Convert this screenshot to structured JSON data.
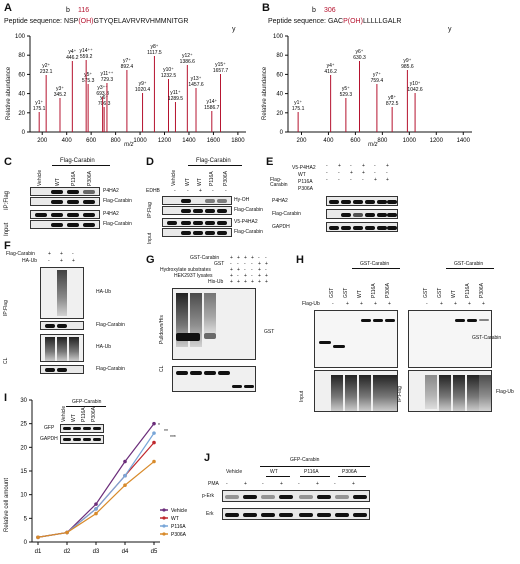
{
  "panels": {
    "A": "A",
    "B": "B",
    "C": "C",
    "D": "D",
    "E": "E",
    "F": "F",
    "G": "G",
    "H": "H",
    "I": "I",
    "J": "J"
  },
  "A": {
    "b_label": "b",
    "site": "116",
    "peptide_prefix": "Peptide sequence: ",
    "peptide_pre": "NSP",
    "peptide_mod": "(OH)",
    "peptide_post": "GTYQELAVRVRVHMMNITGR",
    "y_label": "y",
    "ylabel": "Relative abundance",
    "xlabel": "m/z",
    "yticks": [
      "100",
      "80",
      "60",
      "40",
      "20",
      "0"
    ],
    "xticks": [
      "200",
      "400",
      "600",
      "800",
      "1000",
      "1200",
      "1400",
      "1600",
      "1800"
    ],
    "peaks": [
      "y1⁺\n175.1",
      "y2⁺\n232.1",
      "y3⁺\n345.2",
      "y4⁺\n446.2",
      "y5⁺\n575.3",
      "y6⁺\n706.3",
      "y7⁺\n892.4",
      "y9⁺\n1020.4",
      "y8⁺\n1117.5",
      "y10⁺\n1232.5",
      "y11⁺\n1289.5",
      "y12⁺\n1386.6",
      "y13⁺\n1457.6",
      "y14⁺\n1586.7",
      "y15⁺\n1657.7",
      "y3⁺⁺\n693.8",
      "y14⁺⁺\n559.2",
      "y11⁺⁺\n729.3"
    ]
  },
  "B": {
    "b_label": "b",
    "site": "306",
    "peptide_prefix": "Peptide sequence: ",
    "peptide_pre": "GAC",
    "peptide_mod": "P(OH)",
    "peptide_post": "LLLLLGALR",
    "y_label": "y",
    "ylabel": "Relative abundance",
    "xlabel": "m/z",
    "yticks": [
      "100",
      "80",
      "60",
      "40",
      "20",
      "0"
    ],
    "xticks": [
      "200",
      "400",
      "600",
      "800",
      "1000",
      "1200",
      "1400"
    ],
    "peaks": [
      "y1⁺\n175.1",
      "y4⁺\n416.2",
      "y5⁺\n529.3",
      "y6⁺\n630.3",
      "y7⁺\n759.4",
      "y8⁺\n872.5",
      "y9⁺\n985.6",
      "y10⁺\n1042.6"
    ]
  },
  "C": {
    "group": "Flag-Carabin",
    "lanes": [
      "Vehicle",
      "WT",
      "P116A",
      "P306A"
    ],
    "sections": [
      "IP:Flag",
      "Input"
    ],
    "rows": [
      "P4HA2",
      "Flag-Carabin",
      "P4HA2",
      "Flag-Carabin"
    ]
  },
  "D": {
    "group": "Flag-Carabin",
    "lanes": [
      "Vehicle",
      "WT",
      "WT",
      "P116A",
      "P306A"
    ],
    "edhb": "EDHB",
    "edhb_signs": [
      "-",
      "-",
      "+",
      "-",
      "-"
    ],
    "sections": [
      "IP:Flag",
      "Input"
    ],
    "rows": [
      "Hy-OH",
      "Flag-Carabin",
      "V5-P4HA2",
      "Flag-Carabin"
    ]
  },
  "E": {
    "labels": [
      "V5-P4HA2",
      "WT",
      "P116A",
      "P306A"
    ],
    "group": "Flag-Carabin",
    "signs": [
      [
        "-",
        "+",
        "-",
        "+",
        "-",
        "+"
      ],
      [
        "-",
        "-",
        "+",
        "+",
        "-",
        "-"
      ],
      [
        "-",
        "-",
        "-",
        "-",
        "+",
        "+"
      ]
    ],
    "rows": [
      "P4HA2",
      "Flag-Carabin",
      "GAPDH"
    ]
  },
  "F": {
    "treat": [
      "Flag-Carabin",
      "HA-Ub"
    ],
    "signs": [
      [
        "+",
        "+",
        "-"
      ],
      [
        "-",
        "+",
        "+"
      ]
    ],
    "sections": [
      "IP:Flag",
      "CL"
    ],
    "rows": [
      "HA-Ub",
      "Flag-Carabin",
      "HA-Ub",
      "Flag-Carabin"
    ]
  },
  "G": {
    "treat": [
      "GST-Carabin",
      "GST",
      "Hydroxylate substrates",
      "HEK293T lysates",
      "His-Ub"
    ],
    "signs": [
      [
        "+",
        "+",
        "+",
        "+",
        "-",
        "-"
      ],
      [
        "-",
        "-",
        "-",
        "-",
        "+",
        "+"
      ],
      [
        "+",
        "+",
        "-",
        "-",
        "+",
        "-"
      ],
      [
        "+",
        "-",
        "+",
        "-",
        "+",
        "+"
      ],
      [
        "+",
        "+",
        "+",
        "+",
        "+",
        "+"
      ]
    ],
    "sections": [
      "Pulldown/His",
      "CL"
    ],
    "rows": [
      "GST"
    ]
  },
  "H": {
    "group": "GST-Carabin",
    "lanes": [
      "GST",
      "GST",
      "WT",
      "P116A",
      "P306A"
    ],
    "flag": "Flag-Ub",
    "signs": [
      "-",
      "+",
      "+",
      "+",
      "+"
    ],
    "sections": [
      "Input",
      "IP:Flag"
    ],
    "rows": [
      "GST-Carabin",
      "Flag-Ub"
    ]
  },
  "I": {
    "ylabel": "Relative cell amount",
    "yticks": [
      "30",
      "25",
      "20",
      "15",
      "10",
      "5",
      "0"
    ],
    "xticks": [
      "d1",
      "d2",
      "d3",
      "d4",
      "d5"
    ],
    "inset_group": "GFP-Carabin",
    "inset_lanes": [
      "Vehicle",
      "WT",
      "P116A",
      "P306A"
    ],
    "inset_rows": [
      "GFP",
      "GAPDH"
    ],
    "legend": [
      "Vehicle",
      "WT",
      "P116A",
      "P306A"
    ],
    "stars": [
      "*",
      "**",
      "***"
    ]
  },
  "J": {
    "group": "GFP-Carabin",
    "lanes": [
      "Vehicle",
      "WT",
      "P116A",
      "P306A"
    ],
    "pma": "PMA",
    "signs": [
      "-",
      "+",
      "-",
      "+",
      "-",
      "+",
      "-",
      "+"
    ],
    "rows": [
      "p-Erk",
      "Erk"
    ]
  },
  "chart_data": [
    {
      "type": "line",
      "ylabel": "Relative cell amount",
      "categories": [
        "d1",
        "d2",
        "d3",
        "d4",
        "d5"
      ],
      "ylim": [
        0,
        30
      ],
      "series": [
        {
          "name": "Vehicle",
          "color": "#6b2d7a",
          "values": [
            1,
            2,
            8,
            17,
            25
          ]
        },
        {
          "name": "WT",
          "color": "#c0282d",
          "values": [
            1,
            2,
            7,
            14,
            21
          ]
        },
        {
          "name": "P116A",
          "color": "#78a6d8",
          "values": [
            1,
            2,
            7,
            14,
            23
          ]
        },
        {
          "name": "P306A",
          "color": "#d88a2a",
          "values": [
            1,
            2,
            6,
            12,
            17
          ]
        }
      ]
    }
  ]
}
